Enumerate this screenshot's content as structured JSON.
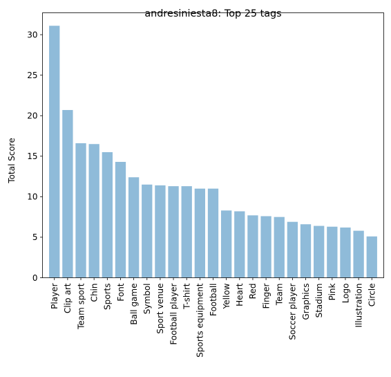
{
  "chart_data": {
    "type": "bar",
    "title": "andresiniesta8: Top 25 tags",
    "xlabel": "",
    "ylabel": "Total Score",
    "categories": [
      "Player",
      "Clip art",
      "Team sport",
      "Chin",
      "Sports",
      "Font",
      "Ball game",
      "Symbol",
      "Sport venue",
      "Football player",
      "T-shirt",
      "Sports equipment",
      "Football",
      "Yellow",
      "Heart",
      "Red",
      "Finger",
      "Team",
      "Soccer player",
      "Graphics",
      "Stadium",
      "Pink",
      "Logo",
      "Illustration",
      "Circle"
    ],
    "values": [
      31.1,
      20.7,
      16.6,
      16.5,
      15.5,
      14.3,
      12.4,
      11.5,
      11.4,
      11.3,
      11.3,
      11.0,
      11.0,
      8.3,
      8.2,
      7.7,
      7.6,
      7.5,
      6.9,
      6.6,
      6.4,
      6.3,
      6.2,
      5.8,
      5.1
    ],
    "ylim": [
      0,
      32.7
    ],
    "yticks": [
      0,
      5,
      10,
      15,
      20,
      25,
      30
    ],
    "bar_color": "#8fbbd9",
    "grid": false
  }
}
